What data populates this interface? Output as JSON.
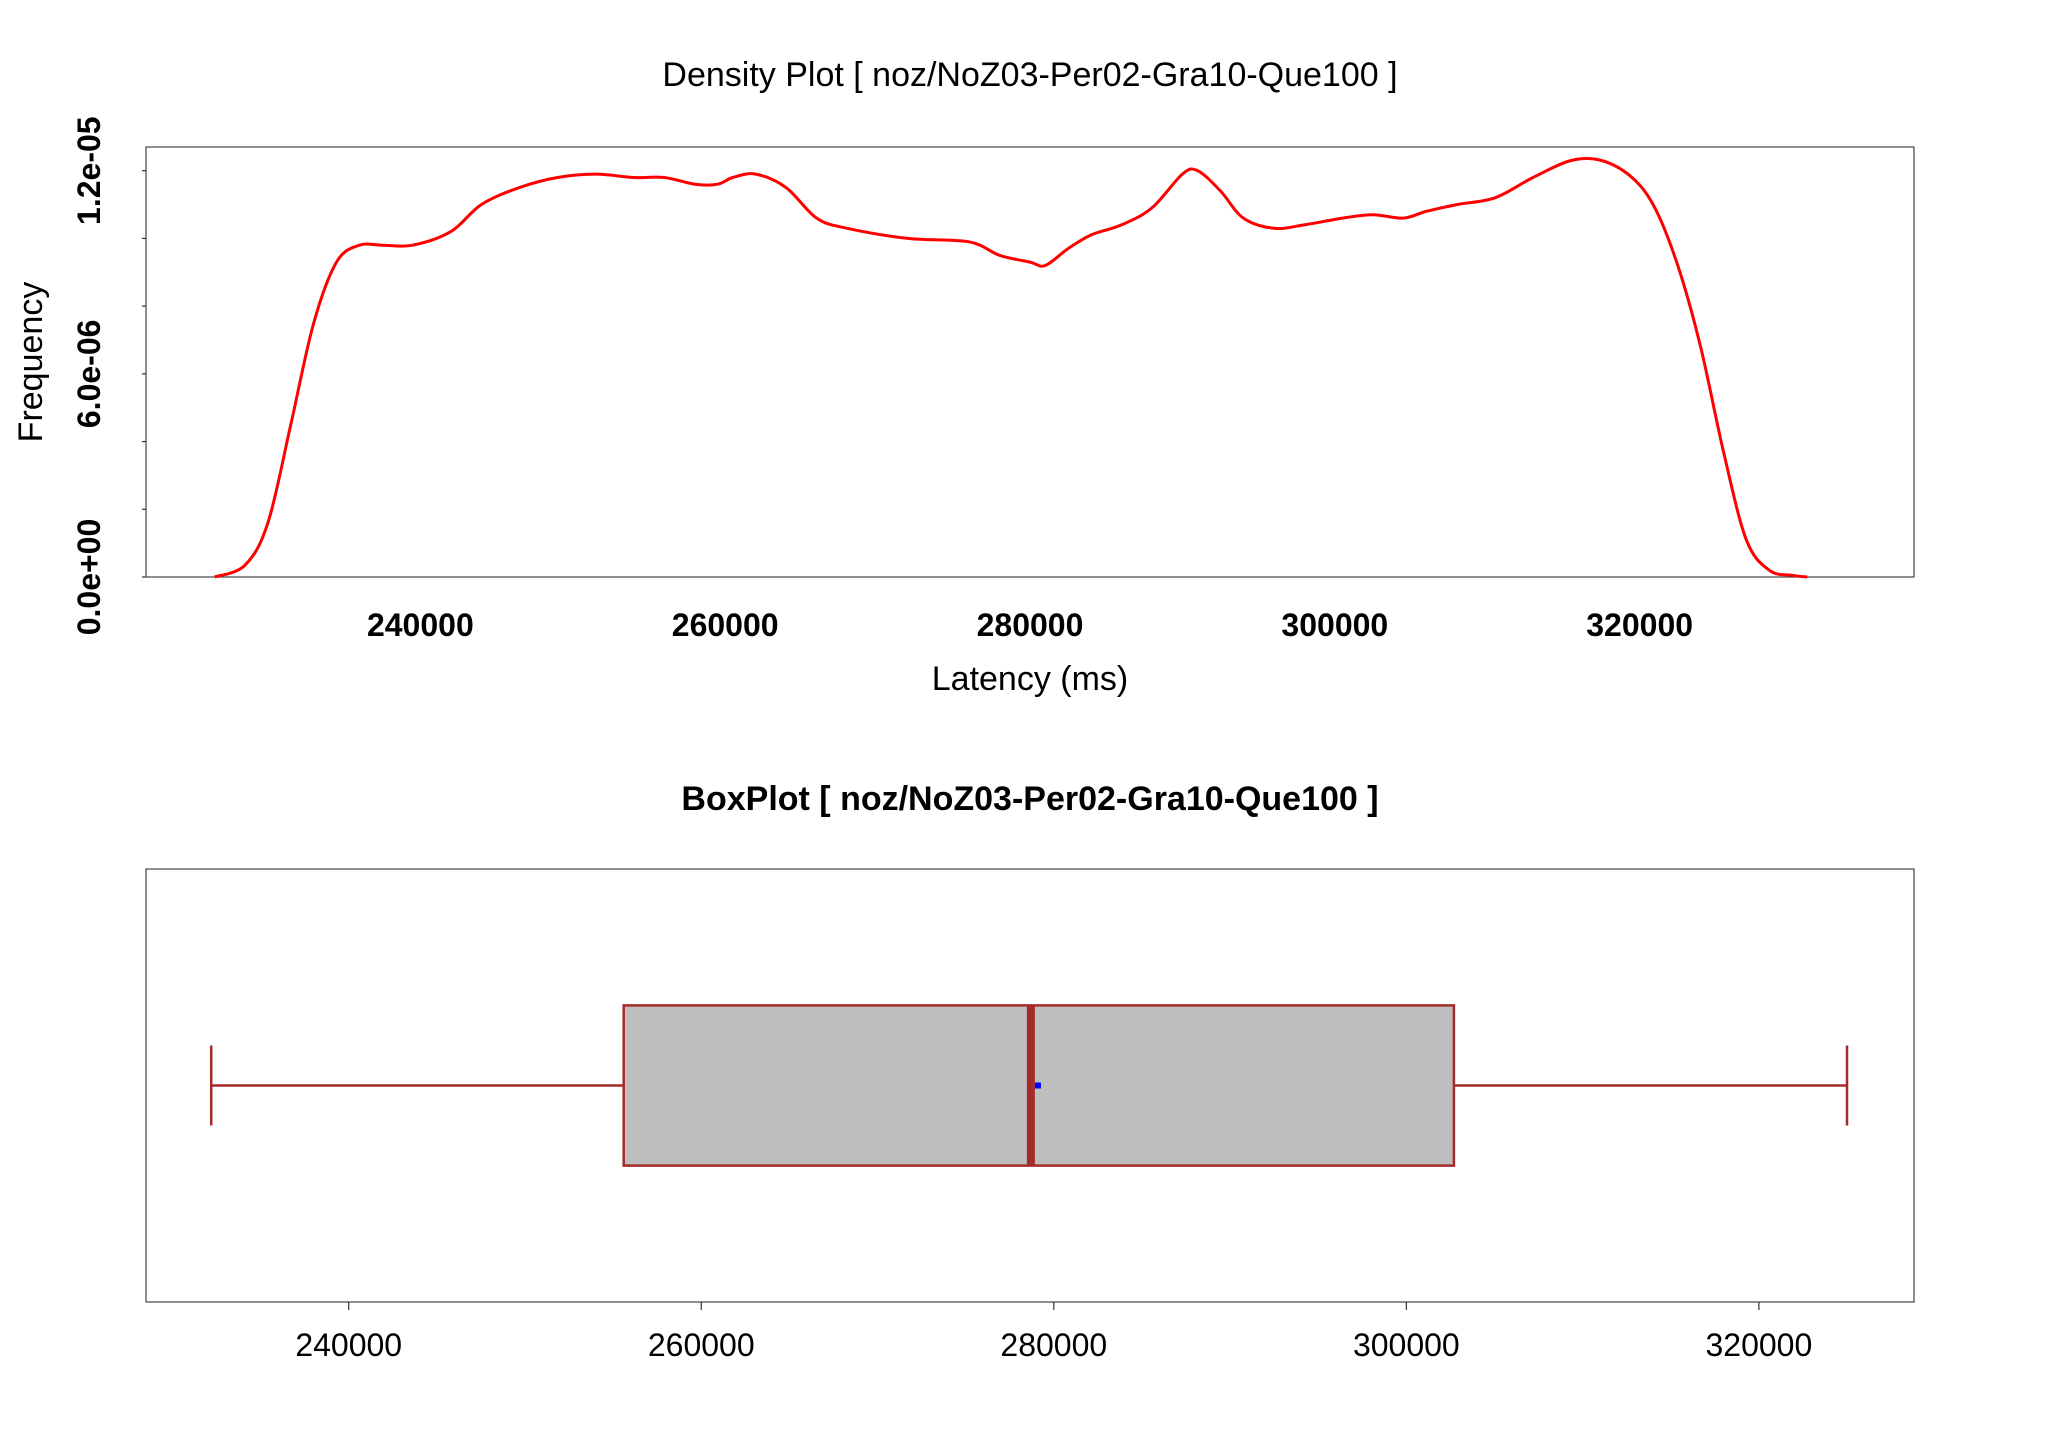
{
  "chart_data": [
    {
      "type": "line",
      "title": "Density Plot [ noz/NoZ03-Per02-Gra10-Que100 ]",
      "xlabel": "Latency (ms)",
      "ylabel": "Frequency",
      "xlim": [
        222000,
        338000
      ],
      "ylim": [
        0,
        1.27e-05
      ],
      "x_ticks": [
        "240000",
        "260000",
        "280000",
        "300000",
        "320000"
      ],
      "x_tick_values": [
        240000,
        260000,
        280000,
        300000,
        320000
      ],
      "y_tick_labels": [
        "0.0e+00",
        "6.0e-06",
        "1.2e-05"
      ],
      "y_tick_label_values": [
        0,
        6e-06,
        1.2e-05
      ],
      "y_minor_ticks": [
        0,
        2e-06,
        4e-06,
        6e-06,
        8e-06,
        1e-05,
        1.2e-05
      ],
      "grid": false,
      "line_color": "#ff0000",
      "series": [
        {
          "x": [
            226500,
            228500,
            230000,
            231500,
            233000,
            234500,
            236000,
            237500,
            239500,
            242000,
            244000,
            246500,
            249000,
            251500,
            254000,
            256000,
            258000,
            259500,
            260500,
            262000,
            264000,
            266000,
            268000,
            272000,
            276000,
            278000,
            280000,
            281000,
            282500,
            284000,
            286000,
            288000,
            290000,
            291000,
            292500,
            294000,
            296000,
            298000,
            300500,
            302500,
            304500,
            306000,
            308000,
            310500,
            313000,
            315500,
            317500,
            319500,
            321000,
            322500,
            324000,
            325500,
            327000,
            328500,
            330000,
            331000
          ],
          "y": [
            0,
            3.5e-07,
            1.6e-06,
            4.5e-06,
            7.5e-06,
            9.3e-06,
            9.8e-06,
            9.8e-06,
            9.8e-06,
            1.02e-05,
            1.1e-05,
            1.15e-05,
            1.18e-05,
            1.19e-05,
            1.18e-05,
            1.18e-05,
            1.16e-05,
            1.16e-05,
            1.18e-05,
            1.19e-05,
            1.15e-05,
            1.06e-05,
            1.03e-05,
            1e-05,
            9.9e-06,
            9.5e-06,
            9.3e-06,
            9.2e-06,
            9.7e-06,
            1.01e-05,
            1.04e-05,
            1.09e-05,
            1.19e-05,
            1.2e-05,
            1.14e-05,
            1.06e-05,
            1.03e-05,
            1.04e-05,
            1.06e-05,
            1.07e-05,
            1.06e-05,
            1.08e-05,
            1.1e-05,
            1.12e-05,
            1.18e-05,
            1.23e-05,
            1.23e-05,
            1.18e-05,
            1.09e-05,
            9.2e-06,
            6.8e-06,
            3.7e-06,
            1.1e-06,
            2e-07,
            5e-08,
            0
          ]
        }
      ]
    },
    {
      "type": "box",
      "title": "BoxPlot [ noz/NoZ03-Per02-Gra10-Que100 ]",
      "xlim": [
        228500,
        328800
      ],
      "x_ticks": [
        "240000",
        "260000",
        "280000",
        "300000",
        "320000"
      ],
      "x_tick_values": [
        240000,
        260000,
        280000,
        300000,
        320000
      ],
      "whisker_low": 232200,
      "q1": 255600,
      "median": 278700,
      "mean": 279100,
      "q3": 302700,
      "whisker_high": 325000,
      "box_fill": "#bebebe",
      "box_stroke": "#a52a2a",
      "mean_color": "#0000ff",
      "grid": false
    }
  ]
}
